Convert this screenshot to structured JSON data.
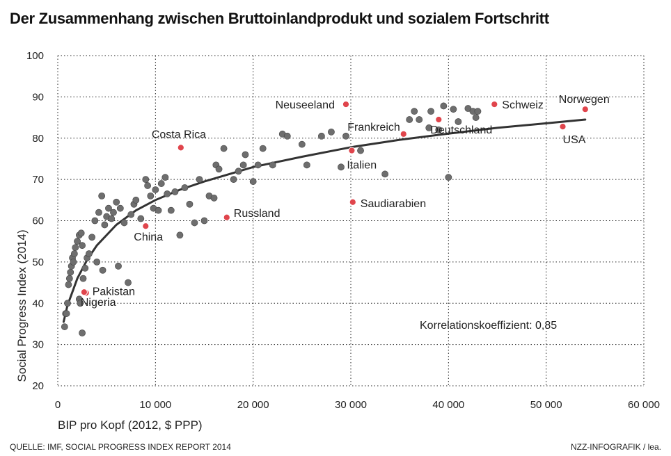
{
  "title": "Der Zusammenhang zwischen Bruttoinlandprodukt und sozialem Fortschritt",
  "source": "QUELLE: IMF, SOCIAL PROGRESS INDEX REPORT 2014",
  "credit": "NZZ-INFOGRAFIK / lea.",
  "colors": {
    "grey_point": "#6e6e6e",
    "red_point": "#e0454c",
    "trend_line": "#333333",
    "grid": "#222222"
  },
  "chart_data": {
    "type": "scatter",
    "xlabel": "BIP pro Kopf (2012, $ PPP)",
    "ylabel": "Social Progress Index (2014)",
    "xlim": [
      0,
      60000
    ],
    "ylim": [
      20,
      100
    ],
    "x_ticks": [
      {
        "value": 0,
        "label": "0"
      },
      {
        "value": 10000,
        "label": "10 000"
      },
      {
        "value": 20000,
        "label": "20 000"
      },
      {
        "value": 30000,
        "label": "30 000"
      },
      {
        "value": 40000,
        "label": "40 000"
      },
      {
        "value": 50000,
        "label": "50 000"
      },
      {
        "value": 60000,
        "label": "60 000"
      }
    ],
    "y_ticks": [
      20,
      30,
      40,
      50,
      60,
      70,
      80,
      90,
      100
    ],
    "grid": true,
    "annotation": "Korrelationskoeffizient: 0,85",
    "trend": {
      "type": "logarithmic",
      "points": [
        [
          600,
          35.5
        ],
        [
          1000,
          39.5
        ],
        [
          2000,
          46
        ],
        [
          3000,
          50.5
        ],
        [
          4000,
          54
        ],
        [
          6000,
          59
        ],
        [
          8000,
          62.5
        ],
        [
          10000,
          65
        ],
        [
          12500,
          67.5
        ],
        [
          15000,
          69.5
        ],
        [
          20000,
          73
        ],
        [
          25000,
          75.5
        ],
        [
          30000,
          77.8
        ],
        [
          35000,
          79.6
        ],
        [
          40000,
          81.1
        ],
        [
          45000,
          82.5
        ],
        [
          50000,
          83.6
        ],
        [
          54000,
          84.5
        ]
      ]
    },
    "highlighted": [
      {
        "name": "Norwegen",
        "x": 54000,
        "y": 87
      },
      {
        "name": "Schweiz",
        "x": 44700,
        "y": 88.2
      },
      {
        "name": "USA",
        "x": 51700,
        "y": 82.8
      },
      {
        "name": "Deutschland",
        "x": 39000,
        "y": 84.5
      },
      {
        "name": "Neuseeland",
        "x": 29500,
        "y": 88.2
      },
      {
        "name": "Frankreich",
        "x": 35400,
        "y": 81
      },
      {
        "name": "Italien",
        "x": 30100,
        "y": 77
      },
      {
        "name": "Saudiarabien",
        "x": 30200,
        "y": 64.5
      },
      {
        "name": "Costa Rica",
        "x": 12600,
        "y": 77.7
      },
      {
        "name": "Russland",
        "x": 17300,
        "y": 60.8
      },
      {
        "name": "China",
        "x": 9000,
        "y": 58.7
      },
      {
        "name": "Pakistan",
        "x": 2900,
        "y": 42.5
      },
      {
        "name": "Nigeria",
        "x": 2700,
        "y": 42.7
      }
    ],
    "others": [
      [
        700,
        34.3
      ],
      [
        800,
        37.5
      ],
      [
        900,
        37.5
      ],
      [
        1000,
        40
      ],
      [
        1100,
        44.5
      ],
      [
        1200,
        46
      ],
      [
        1300,
        47.5
      ],
      [
        1400,
        49
      ],
      [
        1500,
        51
      ],
      [
        1600,
        50
      ],
      [
        1700,
        52
      ],
      [
        1800,
        53.5
      ],
      [
        2000,
        55
      ],
      [
        2200,
        56.5
      ],
      [
        2400,
        57
      ],
      [
        2500,
        54
      ],
      [
        2200,
        41
      ],
      [
        2300,
        40
      ],
      [
        2500,
        32.8
      ],
      [
        2600,
        46
      ],
      [
        2800,
        48.5
      ],
      [
        3000,
        51
      ],
      [
        3200,
        52
      ],
      [
        3500,
        56
      ],
      [
        3800,
        60
      ],
      [
        4000,
        50
      ],
      [
        4200,
        62
      ],
      [
        4500,
        66
      ],
      [
        4600,
        48
      ],
      [
        4800,
        59
      ],
      [
        5000,
        61
      ],
      [
        5200,
        63
      ],
      [
        5500,
        60.5
      ],
      [
        5700,
        62
      ],
      [
        6000,
        64.5
      ],
      [
        6200,
        49
      ],
      [
        6400,
        63
      ],
      [
        6800,
        59.5
      ],
      [
        7200,
        45
      ],
      [
        7500,
        61.5
      ],
      [
        7800,
        64
      ],
      [
        8000,
        65
      ],
      [
        8500,
        60.5
      ],
      [
        9000,
        70
      ],
      [
        9200,
        68.5
      ],
      [
        9500,
        66
      ],
      [
        9800,
        63
      ],
      [
        10000,
        67.5
      ],
      [
        10300,
        62.5
      ],
      [
        10600,
        69
      ],
      [
        11000,
        70.5
      ],
      [
        11200,
        66.5
      ],
      [
        11600,
        62.5
      ],
      [
        12000,
        67
      ],
      [
        12500,
        56.5
      ],
      [
        13000,
        68
      ],
      [
        13500,
        64
      ],
      [
        14000,
        59.5
      ],
      [
        14500,
        70
      ],
      [
        15000,
        60
      ],
      [
        15500,
        66
      ],
      [
        16000,
        65.5
      ],
      [
        16200,
        73.5
      ],
      [
        16500,
        72.5
      ],
      [
        17000,
        77.5
      ],
      [
        18000,
        70
      ],
      [
        18500,
        72
      ],
      [
        19000,
        73.5
      ],
      [
        19200,
        76
      ],
      [
        20000,
        69.5
      ],
      [
        20500,
        73.5
      ],
      [
        21000,
        77.5
      ],
      [
        22000,
        73.5
      ],
      [
        23000,
        81
      ],
      [
        23500,
        80.5
      ],
      [
        25000,
        78.5
      ],
      [
        25500,
        73.5
      ],
      [
        27000,
        80.5
      ],
      [
        28000,
        81.5
      ],
      [
        29000,
        73
      ],
      [
        29500,
        80.5
      ],
      [
        31000,
        77
      ],
      [
        33500,
        71.3
      ],
      [
        36000,
        84.5
      ],
      [
        36500,
        86.5
      ],
      [
        37000,
        84.5
      ],
      [
        38000,
        82.5
      ],
      [
        38200,
        86.5
      ],
      [
        39000,
        82
      ],
      [
        39500,
        87.8
      ],
      [
        40000,
        70.5
      ],
      [
        40500,
        87
      ],
      [
        41000,
        84
      ],
      [
        42000,
        87.2
      ],
      [
        42500,
        86.5
      ],
      [
        42800,
        85
      ],
      [
        43000,
        86.5
      ]
    ]
  }
}
